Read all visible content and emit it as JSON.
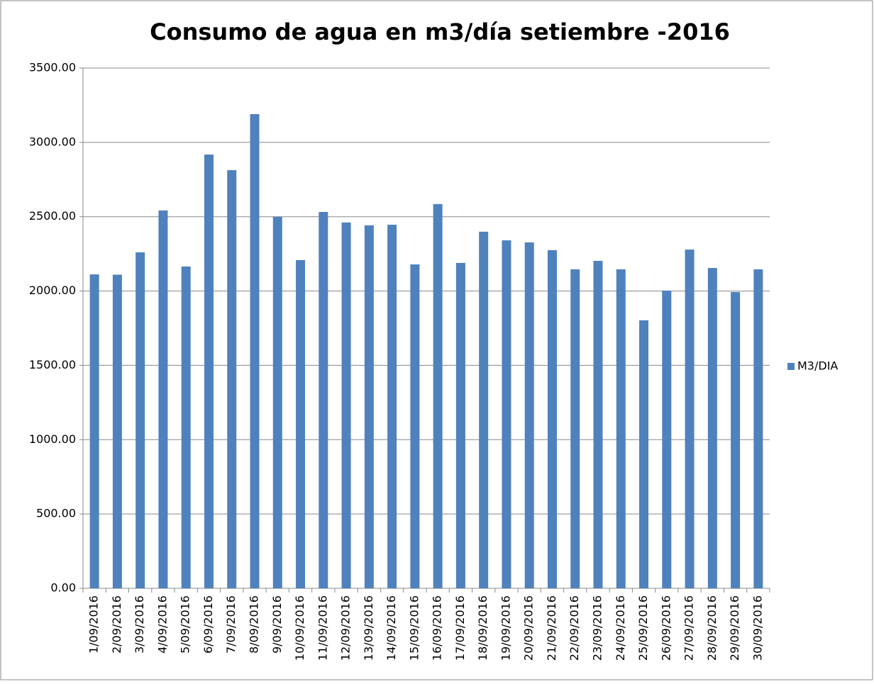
{
  "chart_data": {
    "type": "bar",
    "title": "Consumo de agua en m3/día setiembre -2016",
    "categories": [
      "1/09/2016",
      "2/09/2016",
      "3/09/2016",
      "4/09/2016",
      "5/09/2016",
      "6/09/2016",
      "7/09/2016",
      "8/09/2016",
      "9/09/2016",
      "10/09/2016",
      "11/09/2016",
      "12/09/2016",
      "13/09/2016",
      "14/09/2016",
      "15/09/2016",
      "16/09/2016",
      "17/09/2016",
      "18/09/2016",
      "19/09/2016",
      "20/09/2016",
      "21/09/2016",
      "22/09/2016",
      "23/09/2016",
      "24/09/2016",
      "25/09/2016",
      "26/09/2016",
      "27/09/2016",
      "28/09/2016",
      "29/09/2016",
      "30/09/2016"
    ],
    "series": [
      {
        "name": "M3/DIA",
        "color": "#4f81bd",
        "values": [
          2112,
          2110,
          2260,
          2542,
          2165,
          2918,
          2813,
          3190,
          2499,
          2208,
          2532,
          2461,
          2442,
          2446,
          2179,
          2585,
          2189,
          2399,
          2341,
          2327,
          2275,
          2146,
          2203,
          2146,
          1803,
          2003,
          2279,
          2155,
          1993,
          2146
        ]
      }
    ],
    "ylim": [
      0,
      3500
    ],
    "yticks": [
      {
        "value": 0,
        "label": "0.00"
      },
      {
        "value": 500,
        "label": "500.00"
      },
      {
        "value": 1000,
        "label": "1000.00"
      },
      {
        "value": 1500,
        "label": "1500.00"
      },
      {
        "value": 2000,
        "label": "2000.00"
      },
      {
        "value": 2500,
        "label": "2500.00"
      },
      {
        "value": 3000,
        "label": "3000.00"
      },
      {
        "value": 3500,
        "label": "3500.00"
      }
    ],
    "grid": true,
    "legend": "right"
  }
}
